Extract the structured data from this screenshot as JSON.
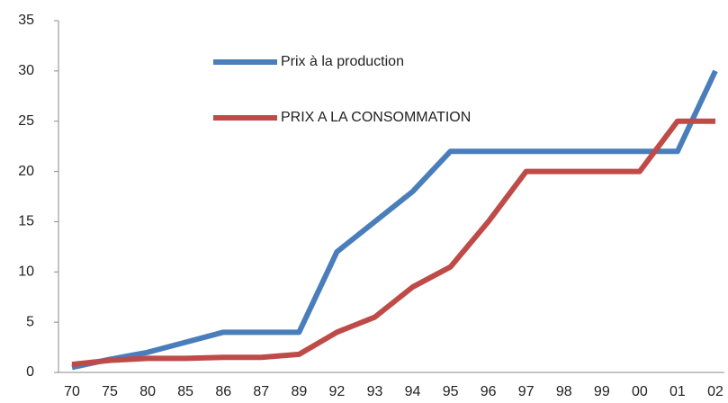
{
  "chart_data": {
    "type": "line",
    "categories": [
      "70",
      "75",
      "80",
      "85",
      "86",
      "87",
      "89",
      "92",
      "93",
      "94",
      "95",
      "96",
      "97",
      "98",
      "99",
      "00",
      "01",
      "02"
    ],
    "series": [
      {
        "name": "Prix à la production",
        "color": "#4a7ebb",
        "values": [
          0.5,
          1.3,
          2,
          3,
          4,
          4,
          4,
          12,
          15,
          18,
          22,
          22,
          22,
          22,
          22,
          22,
          22,
          30
        ]
      },
      {
        "name": "PRIX A LA CONSOMMATION",
        "color": "#be4b48",
        "values": [
          0.8,
          1.2,
          1.4,
          1.4,
          1.5,
          1.5,
          1.8,
          4,
          5.5,
          8.5,
          10.5,
          15,
          20,
          20,
          20,
          20,
          25,
          25
        ]
      }
    ],
    "ylim": [
      0,
      35
    ],
    "yticks": [
      0,
      5,
      10,
      15,
      20,
      25,
      30,
      35
    ],
    "grid": false
  }
}
